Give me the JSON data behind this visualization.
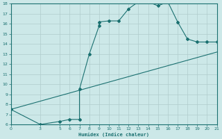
{
  "xlabel": "Humidex (Indice chaleur)",
  "bg_color": "#cce8e8",
  "line_color": "#1a7070",
  "grid_color": "#b0cccc",
  "ylim": [
    6,
    18
  ],
  "xlim": [
    0,
    21
  ],
  "yticks": [
    6,
    7,
    8,
    9,
    10,
    11,
    12,
    13,
    14,
    15,
    16,
    17,
    18
  ],
  "xticks": [
    0,
    3,
    5,
    6,
    7,
    8,
    9,
    10,
    11,
    12,
    13,
    14,
    15,
    16,
    17,
    18,
    19,
    20,
    21
  ],
  "curve_x": [
    0,
    3,
    5,
    6,
    7,
    7,
    8,
    9,
    9,
    10,
    11,
    12,
    13,
    14,
    15,
    16,
    17,
    18,
    19,
    20,
    21
  ],
  "curve_y": [
    7.5,
    6.0,
    6.3,
    6.5,
    6.5,
    9.5,
    13.0,
    15.8,
    16.2,
    16.3,
    16.3,
    17.5,
    18.2,
    18.2,
    17.8,
    18.2,
    16.2,
    14.5,
    14.2,
    14.2,
    14.2
  ],
  "line_x": [
    0,
    21
  ],
  "line_y": [
    7.5,
    13.2
  ]
}
